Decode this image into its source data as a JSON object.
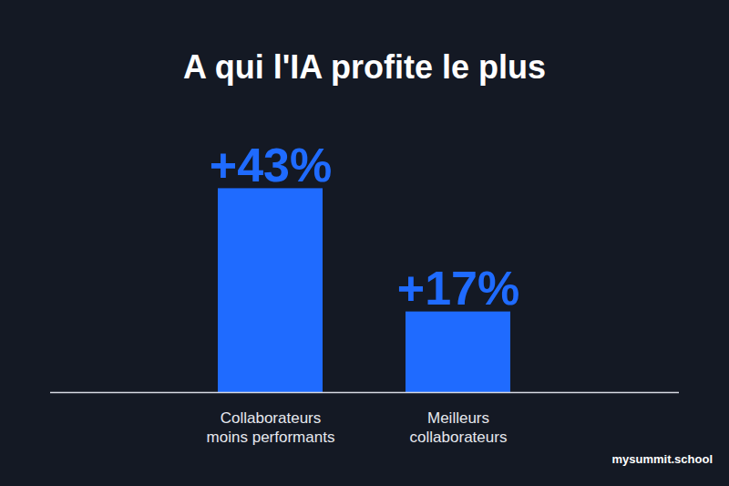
{
  "chart_data": {
    "type": "bar",
    "title": "A qui l'IA profite le plus",
    "categories": [
      "Collaborateurs moins performants",
      "Meilleurs collaborateurs"
    ],
    "values": [
      43,
      17
    ],
    "value_labels": [
      "+43%",
      "+17%"
    ],
    "color": "#1f6bff",
    "ylim": [
      0,
      50
    ],
    "data_labels": true,
    "tick_labels": "x",
    "annotations": [
      "mysummit.school"
    ]
  }
}
